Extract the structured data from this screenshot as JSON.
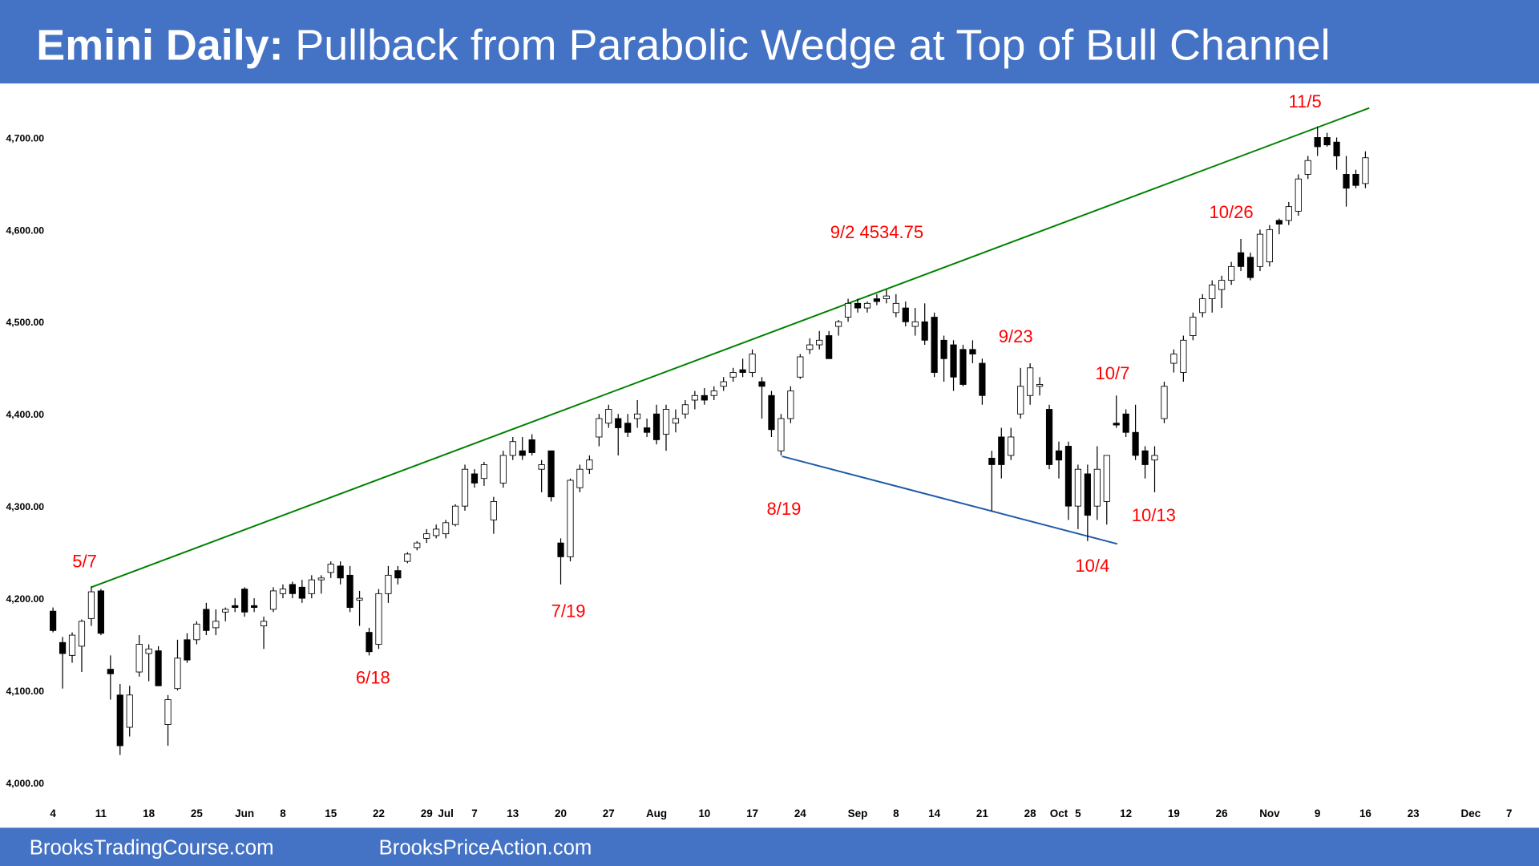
{
  "header": {
    "title_bold": "Emini Daily:",
    "title": "Pullback from Parabolic Wedge at Top of Bull Channel"
  },
  "chart_data": {
    "type": "candlestick",
    "up_color": "#ffffff",
    "down_color": "#000000",
    "values": [
      [
        4186,
        4190,
        4163,
        4165
      ],
      [
        4152,
        4158,
        4102,
        4140
      ],
      [
        4138,
        4163,
        4130,
        4160
      ],
      [
        4148,
        4177,
        4120,
        4175
      ],
      [
        4178,
        4213,
        4170,
        4207
      ],
      [
        4208,
        4210,
        4160,
        4162
      ],
      [
        4123,
        4138,
        4090,
        4118
      ],
      [
        4095,
        4107,
        4030,
        4040
      ],
      [
        4060,
        4105,
        4050,
        4095
      ],
      [
        4120,
        4160,
        4115,
        4150
      ],
      [
        4140,
        4150,
        4110,
        4145
      ],
      [
        4143,
        4148,
        4105,
        4105
      ],
      [
        4063,
        4095,
        4040,
        4090
      ],
      [
        4102,
        4155,
        4100,
        4135
      ],
      [
        4155,
        4162,
        4130,
        4133
      ],
      [
        4155,
        4175,
        4150,
        4172
      ],
      [
        4188,
        4195,
        4160,
        4165
      ],
      [
        4168,
        4188,
        4160,
        4175
      ],
      [
        4185,
        4190,
        4175,
        4188
      ],
      [
        4192,
        4200,
        4185,
        4190
      ],
      [
        4210,
        4212,
        4180,
        4185
      ],
      [
        4192,
        4200,
        4185,
        4190
      ],
      [
        4170,
        4180,
        4145,
        4175
      ],
      [
        4188,
        4212,
        4185,
        4208
      ],
      [
        4205,
        4215,
        4200,
        4210
      ],
      [
        4215,
        4218,
        4200,
        4205
      ],
      [
        4212,
        4220,
        4195,
        4200
      ],
      [
        4205,
        4225,
        4200,
        4220
      ],
      [
        4220,
        4225,
        4205,
        4222
      ],
      [
        4228,
        4240,
        4222,
        4237
      ],
      [
        4235,
        4240,
        4215,
        4222
      ],
      [
        4225,
        4235,
        4185,
        4190
      ],
      [
        4198,
        4208,
        4170,
        4200
      ],
      [
        4163,
        4168,
        4138,
        4142
      ],
      [
        4150,
        4210,
        4145,
        4205
      ],
      [
        4205,
        4235,
        4195,
        4225
      ],
      [
        4230,
        4235,
        4215,
        4222
      ],
      [
        4240,
        4250,
        4238,
        4248
      ],
      [
        4255,
        4262,
        4252,
        4260
      ],
      [
        4265,
        4275,
        4260,
        4270
      ],
      [
        4268,
        4280,
        4265,
        4275
      ],
      [
        4270,
        4285,
        4265,
        4282
      ],
      [
        4280,
        4302,
        4278,
        4300
      ],
      [
        4300,
        4345,
        4295,
        4340
      ],
      [
        4335,
        4340,
        4320,
        4325
      ],
      [
        4330,
        4348,
        4322,
        4345
      ],
      [
        4285,
        4310,
        4270,
        4305
      ],
      [
        4325,
        4360,
        4320,
        4355
      ],
      [
        4355,
        4375,
        4350,
        4370
      ],
      [
        4360,
        4375,
        4350,
        4355
      ],
      [
        4372,
        4378,
        4355,
        4358
      ],
      [
        4340,
        4350,
        4315,
        4345
      ],
      [
        4360,
        4360,
        4305,
        4310
      ],
      [
        4260,
        4265,
        4215,
        4245
      ],
      [
        4245,
        4330,
        4240,
        4328
      ],
      [
        4320,
        4345,
        4315,
        4340
      ],
      [
        4340,
        4355,
        4335,
        4350
      ],
      [
        4375,
        4400,
        4365,
        4395
      ],
      [
        4390,
        4410,
        4385,
        4405
      ],
      [
        4395,
        4400,
        4355,
        4385
      ],
      [
        4390,
        4400,
        4375,
        4380
      ],
      [
        4395,
        4415,
        4385,
        4400
      ],
      [
        4385,
        4395,
        4375,
        4380
      ],
      [
        4400,
        4410,
        4367,
        4372
      ],
      [
        4378,
        4410,
        4360,
        4405
      ],
      [
        4390,
        4405,
        4380,
        4395
      ],
      [
        4400,
        4415,
        4395,
        4410
      ],
      [
        4415,
        4425,
        4405,
        4420
      ],
      [
        4420,
        4428,
        4410,
        4415
      ],
      [
        4420,
        4430,
        4415,
        4425
      ],
      [
        4430,
        4440,
        4425,
        4435
      ],
      [
        4440,
        4450,
        4435,
        4445
      ],
      [
        4448,
        4460,
        4440,
        4445
      ],
      [
        4445,
        4470,
        4440,
        4465
      ],
      [
        4435,
        4440,
        4395,
        4430
      ],
      [
        4420,
        4425,
        4375,
        4383
      ],
      [
        4360,
        4400,
        4355,
        4395
      ],
      [
        4395,
        4430,
        4390,
        4425
      ],
      [
        4440,
        4465,
        4438,
        4462
      ],
      [
        4470,
        4482,
        4465,
        4475
      ],
      [
        4475,
        4490,
        4470,
        4480
      ],
      [
        4485,
        4490,
        4460,
        4460
      ],
      [
        4495,
        4502,
        4485,
        4500
      ],
      [
        4505,
        4525,
        4500,
        4520
      ],
      [
        4520,
        4525,
        4510,
        4515
      ],
      [
        4515,
        4522,
        4510,
        4520
      ],
      [
        4525,
        4530,
        4518,
        4522
      ],
      [
        4525,
        4535,
        4520,
        4528
      ],
      [
        4510,
        4530,
        4505,
        4520
      ],
      [
        4515,
        4522,
        4495,
        4500
      ],
      [
        4495,
        4515,
        4485,
        4500
      ],
      [
        4500,
        4520,
        4475,
        4480
      ],
      [
        4505,
        4510,
        4440,
        4445
      ],
      [
        4480,
        4485,
        4435,
        4460
      ],
      [
        4475,
        4480,
        4425,
        4440
      ],
      [
        4470,
        4475,
        4430,
        4432
      ],
      [
        4470,
        4480,
        4455,
        4465
      ],
      [
        4455,
        4460,
        4410,
        4420
      ],
      [
        4352,
        4360,
        4295,
        4345
      ],
      [
        4375,
        4385,
        4330,
        4345
      ],
      [
        4355,
        4385,
        4350,
        4375
      ],
      [
        4400,
        4450,
        4395,
        4430
      ],
      [
        4420,
        4455,
        4410,
        4450
      ],
      [
        4430,
        4440,
        4420,
        4432
      ],
      [
        4405,
        4410,
        4340,
        4345
      ],
      [
        4360,
        4370,
        4330,
        4350
      ],
      [
        4365,
        4370,
        4285,
        4300
      ],
      [
        4300,
        4345,
        4275,
        4340
      ],
      [
        4335,
        4345,
        4262,
        4290
      ],
      [
        4300,
        4365,
        4285,
        4340
      ],
      [
        4305,
        4355,
        4280,
        4355
      ],
      [
        4390,
        4420,
        4385,
        4388
      ],
      [
        4400,
        4405,
        4375,
        4380
      ],
      [
        4380,
        4410,
        4350,
        4355
      ],
      [
        4360,
        4365,
        4330,
        4345
      ],
      [
        4350,
        4365,
        4315,
        4355
      ],
      [
        4395,
        4435,
        4390,
        4430
      ],
      [
        4455,
        4470,
        4445,
        4465
      ],
      [
        4445,
        4485,
        4435,
        4480
      ],
      [
        4485,
        4510,
        4480,
        4505
      ],
      [
        4510,
        4530,
        4505,
        4525
      ],
      [
        4525,
        4545,
        4510,
        4540
      ],
      [
        4535,
        4550,
        4515,
        4545
      ],
      [
        4545,
        4565,
        4540,
        4560
      ],
      [
        4575,
        4590,
        4555,
        4560
      ],
      [
        4570,
        4575,
        4545,
        4548
      ],
      [
        4560,
        4600,
        4555,
        4595
      ],
      [
        4565,
        4605,
        4560,
        4600
      ],
      [
        4610,
        4612,
        4595,
        4606
      ],
      [
        4610,
        4630,
        4605,
        4625
      ],
      [
        4620,
        4660,
        4615,
        4655
      ],
      [
        4660,
        4680,
        4655,
        4675
      ],
      [
        4700,
        4712,
        4680,
        4690
      ],
      [
        4700,
        4705,
        4690,
        4692
      ],
      [
        4695,
        4700,
        4665,
        4680
      ],
      [
        4660,
        4680,
        4625,
        4645
      ],
      [
        4660,
        4665,
        4645,
        4648
      ],
      [
        4650,
        4685,
        4645,
        4678
      ]
    ],
    "xlim": [
      -1,
      153
    ],
    "xticks": [
      {
        "value": 0,
        "label": "4"
      },
      {
        "value": 5,
        "label": "11"
      },
      {
        "value": 10,
        "label": "18"
      },
      {
        "value": 15,
        "label": "25"
      },
      {
        "value": 20,
        "label": "Jun"
      },
      {
        "value": 24,
        "label": "8"
      },
      {
        "value": 29,
        "label": "15"
      },
      {
        "value": 34,
        "label": "22"
      },
      {
        "value": 39,
        "label": "29"
      },
      {
        "value": 41,
        "label": "Jul"
      },
      {
        "value": 44,
        "label": "7"
      },
      {
        "value": 48,
        "label": "13"
      },
      {
        "value": 53,
        "label": "20"
      },
      {
        "value": 58,
        "label": "27"
      },
      {
        "value": 63,
        "label": "Aug"
      },
      {
        "value": 68,
        "label": "10"
      },
      {
        "value": 73,
        "label": "17"
      },
      {
        "value": 78,
        "label": "24"
      },
      {
        "value": 84,
        "label": "Sep"
      },
      {
        "value": 88,
        "label": "8"
      },
      {
        "value": 92,
        "label": "14"
      },
      {
        "value": 97,
        "label": "21"
      },
      {
        "value": 102,
        "label": "28"
      },
      {
        "value": 105,
        "label": "Oct"
      },
      {
        "value": 107,
        "label": "5"
      },
      {
        "value": 112,
        "label": "12"
      },
      {
        "value": 117,
        "label": "19"
      },
      {
        "value": 122,
        "label": "26"
      },
      {
        "value": 127,
        "label": "Nov"
      },
      {
        "value": 132,
        "label": "9"
      },
      {
        "value": 137,
        "label": "16"
      },
      {
        "value": 142,
        "label": "23"
      },
      {
        "value": 148,
        "label": "Dec"
      },
      {
        "value": 152,
        "label": "7"
      }
    ],
    "ylim": [
      3980,
      4750
    ],
    "yticks": [
      {
        "value": 4000,
        "label": "4,000.00"
      },
      {
        "value": 4100,
        "label": "4,100.00"
      },
      {
        "value": 4200,
        "label": "4,200.00"
      },
      {
        "value": 4300,
        "label": "4,300.00"
      },
      {
        "value": 4400,
        "label": "4,400.00"
      },
      {
        "value": 4500,
        "label": "4,500.00"
      },
      {
        "value": 4600,
        "label": "4,600.00"
      },
      {
        "value": 4700,
        "label": "4,700.00"
      }
    ],
    "trendlines": [
      {
        "color": "#008000",
        "points": [
          [
            4,
            4212
          ],
          [
            137.4,
            4732
          ]
        ]
      },
      {
        "color": "#1f5aa6",
        "points": [
          [
            76.1,
            4354
          ],
          [
            111.1,
            4259
          ]
        ]
      }
    ],
    "annotation_color": "#ff0000",
    "annotations": [
      {
        "text": "5/7",
        "x": 3.3,
        "y": 4240
      },
      {
        "text": "6/18",
        "x": 33.4,
        "y": 4114
      },
      {
        "text": "7/19",
        "x": 53.8,
        "y": 4186
      },
      {
        "text": "8/19",
        "x": 76.3,
        "y": 4297
      },
      {
        "text": "9/2 4534.75",
        "x": 86,
        "y": 4597
      },
      {
        "text": "9/23",
        "x": 100.5,
        "y": 4484
      },
      {
        "text": "10/7",
        "x": 110.6,
        "y": 4444
      },
      {
        "text": "10/4",
        "x": 108.5,
        "y": 4235
      },
      {
        "text": "10/13",
        "x": 114.9,
        "y": 4290
      },
      {
        "text": "10/26",
        "x": 123,
        "y": 4619
      },
      {
        "text": "11/5",
        "x": 130.7,
        "y": 4739
      }
    ]
  },
  "footer": {
    "left": "BrooksTradingCourse.com",
    "right": "BrooksPriceAction.com"
  }
}
